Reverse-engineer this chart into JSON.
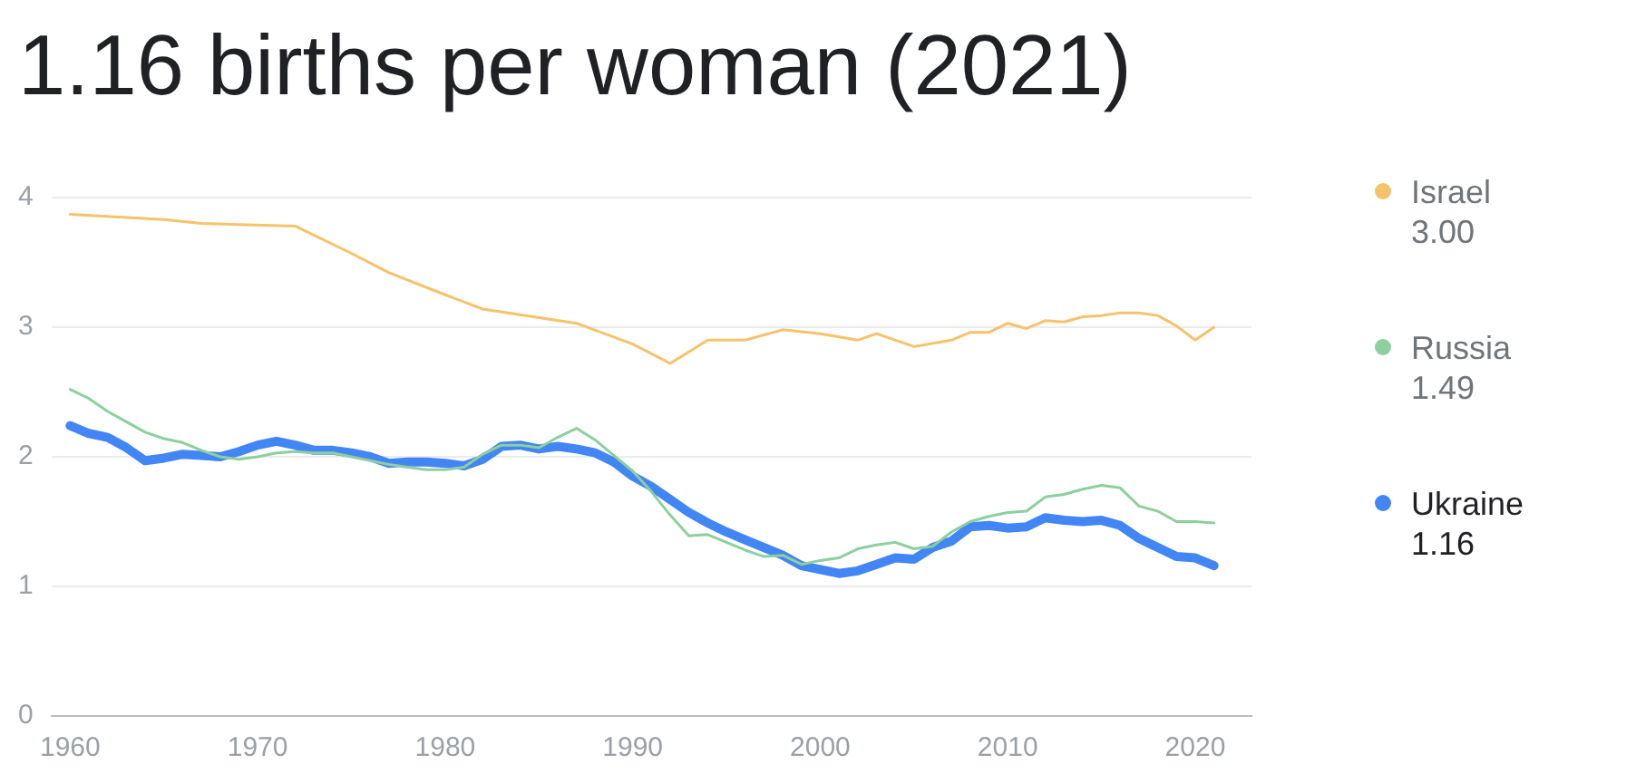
{
  "chart_data": {
    "type": "line",
    "title": "1.16 births per woman (2021)",
    "x": [
      1960,
      1961,
      1962,
      1963,
      1964,
      1965,
      1966,
      1967,
      1968,
      1969,
      1970,
      1971,
      1972,
      1973,
      1974,
      1975,
      1976,
      1977,
      1978,
      1979,
      1980,
      1981,
      1982,
      1983,
      1984,
      1985,
      1986,
      1987,
      1988,
      1989,
      1990,
      1991,
      1992,
      1993,
      1994,
      1995,
      1996,
      1997,
      1998,
      1999,
      2000,
      2001,
      2002,
      2003,
      2004,
      2005,
      2006,
      2007,
      2008,
      2009,
      2010,
      2011,
      2012,
      2013,
      2014,
      2015,
      2016,
      2017,
      2018,
      2019,
      2020,
      2021
    ],
    "series": [
      {
        "name": "Israel",
        "color": "#f6c26b",
        "x": [
          1960,
          1965,
          1967,
          1972,
          1975,
          1977,
          1980,
          1982,
          1987,
          1990,
          1992,
          1994,
          1996,
          1998,
          2000,
          2002,
          2003,
          2005,
          2007,
          2008,
          2009,
          2010,
          2011,
          2012,
          2013,
          2014,
          2015,
          2016,
          2017,
          2018,
          2019,
          2020,
          2021
        ],
        "values": [
          3.87,
          3.83,
          3.8,
          3.78,
          3.57,
          3.42,
          3.25,
          3.14,
          3.03,
          2.87,
          2.72,
          2.9,
          2.9,
          2.98,
          2.95,
          2.9,
          2.95,
          2.85,
          2.9,
          2.96,
          2.96,
          3.03,
          2.99,
          3.05,
          3.04,
          3.08,
          3.09,
          3.11,
          3.11,
          3.09,
          3.01,
          2.9,
          3.0
        ]
      },
      {
        "name": "Russia",
        "color": "#8dcf9f",
        "values": [
          2.52,
          2.45,
          2.35,
          2.27,
          2.19,
          2.14,
          2.11,
          2.05,
          2.0,
          1.98,
          2.0,
          2.03,
          2.04,
          2.03,
          2.03,
          2.0,
          1.97,
          1.94,
          1.92,
          1.9,
          1.9,
          1.92,
          2.02,
          2.09,
          2.09,
          2.07,
          2.15,
          2.22,
          2.13,
          2.01,
          1.89,
          1.73,
          1.55,
          1.39,
          1.4,
          1.34,
          1.28,
          1.23,
          1.24,
          1.17,
          1.2,
          1.22,
          1.29,
          1.32,
          1.34,
          1.29,
          1.31,
          1.42,
          1.5,
          1.54,
          1.57,
          1.58,
          1.69,
          1.71,
          1.75,
          1.78,
          1.76,
          1.62,
          1.58,
          1.5,
          1.5,
          1.49
        ]
      },
      {
        "name": "Ukraine",
        "color": "#4285f4",
        "values": [
          2.24,
          2.18,
          2.15,
          2.07,
          1.97,
          1.99,
          2.02,
          2.01,
          2.0,
          2.04,
          2.09,
          2.12,
          2.09,
          2.05,
          2.05,
          2.03,
          2.0,
          1.95,
          1.96,
          1.96,
          1.95,
          1.93,
          1.98,
          2.08,
          2.09,
          2.06,
          2.08,
          2.06,
          2.03,
          1.96,
          1.85,
          1.77,
          1.67,
          1.57,
          1.49,
          1.42,
          1.36,
          1.3,
          1.24,
          1.16,
          1.13,
          1.1,
          1.12,
          1.17,
          1.22,
          1.21,
          1.3,
          1.35,
          1.46,
          1.47,
          1.45,
          1.46,
          1.53,
          1.51,
          1.5,
          1.51,
          1.47,
          1.37,
          1.3,
          1.23,
          1.22,
          1.16
        ]
      }
    ],
    "annotations": [
      "3.00",
      "1.49",
      "1.16"
    ],
    "xlim": [
      1959,
      2023
    ],
    "xticks": [
      1960,
      1970,
      1980,
      1990,
      2000,
      2010,
      2020
    ],
    "ylim": [
      0,
      4
    ],
    "yticks": [
      0,
      1,
      2,
      3,
      4
    ],
    "grid": "y",
    "legend": "right"
  }
}
